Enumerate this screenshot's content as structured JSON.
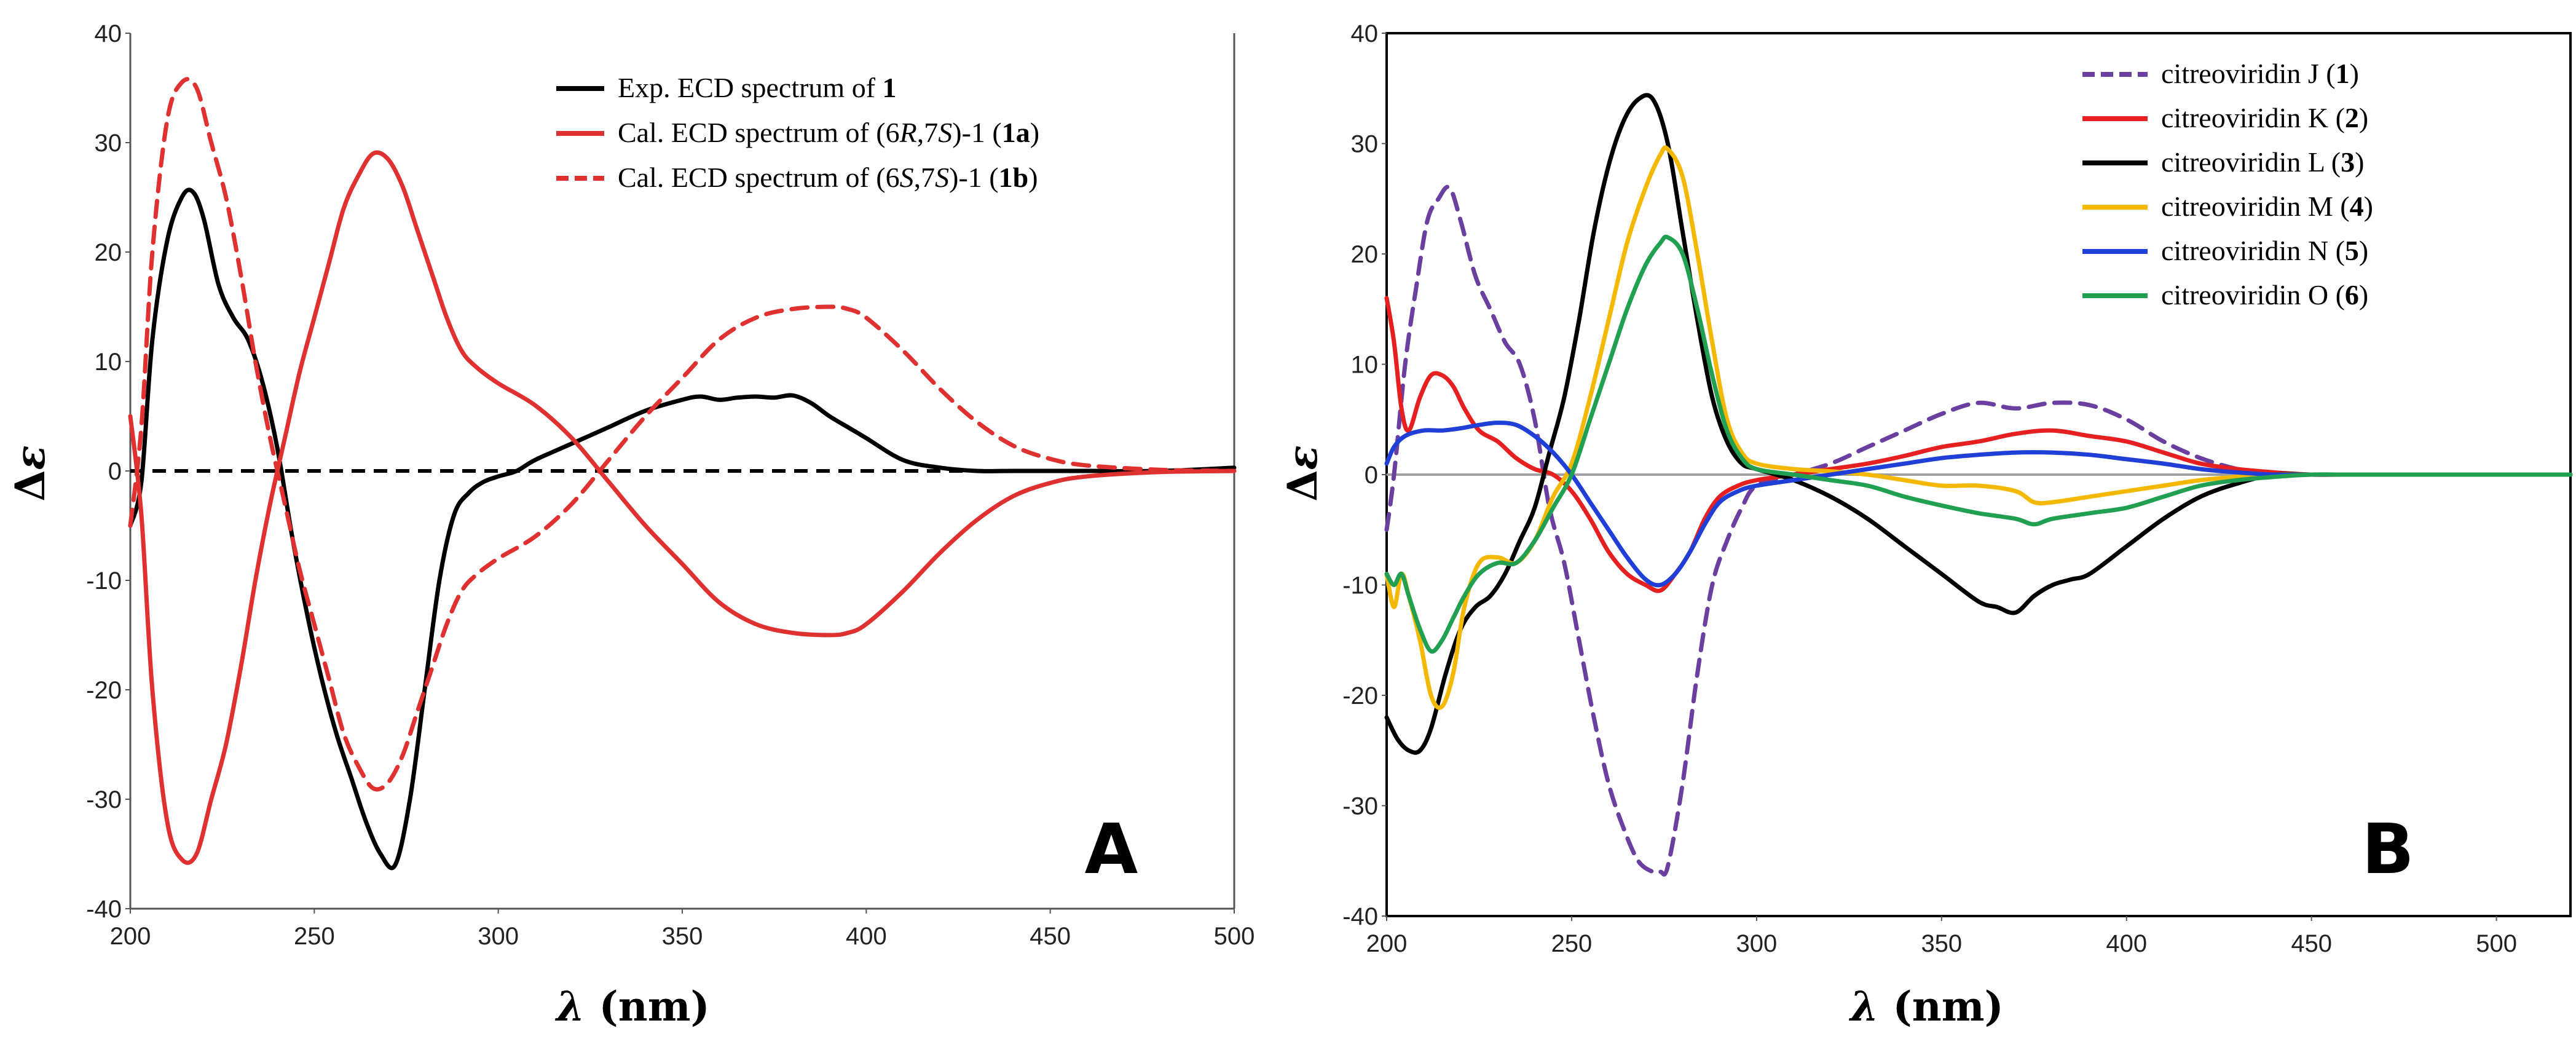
{
  "chart_data": [
    {
      "type": "line",
      "panel_label": "A",
      "xlabel_var": "λ",
      "xlabel_unit": " (nm)",
      "ylabel": "Δε",
      "xlim": [
        200,
        500
      ],
      "ylim": [
        -40,
        40
      ],
      "xticks": [
        200,
        250,
        300,
        350,
        400,
        450,
        500
      ],
      "yticks": [
        -40,
        -30,
        -20,
        -10,
        0,
        10,
        20,
        30,
        40
      ],
      "grid": false,
      "legend_position": "top-right",
      "colors": {
        "black": "#000000",
        "red": "#e03131"
      },
      "zero_line": {
        "value": 0,
        "style": "dashed",
        "color": "#000000"
      },
      "series": [
        {
          "name": "Exp. ECD spectrum of 1",
          "legend_parts": [
            [
              "Exp. ECD spectrum of ",
              ""
            ],
            [
              "1",
              "b"
            ]
          ],
          "color": "#000000",
          "dash": "solid",
          "x": [
            200,
            203,
            206,
            210,
            214,
            217,
            220,
            224,
            228,
            232,
            236,
            240,
            244,
            248,
            252,
            256,
            260,
            264,
            268,
            272,
            276,
            280,
            284,
            288,
            292,
            296,
            300,
            305,
            310,
            320,
            330,
            340,
            350,
            355,
            360,
            365,
            370,
            375,
            380,
            385,
            390,
            395,
            400,
            410,
            420,
            430,
            440,
            460,
            480,
            500
          ],
          "y": [
            -5,
            -1,
            12,
            21,
            25,
            25.5,
            23,
            17,
            14,
            12,
            8,
            2,
            -6,
            -13,
            -19,
            -24,
            -28,
            -32,
            -35,
            -36,
            -30,
            -20,
            -10,
            -4,
            -2,
            -1,
            -0.5,
            0,
            1,
            2.5,
            4,
            5.5,
            6.5,
            6.8,
            6.5,
            6.7,
            6.8,
            6.7,
            6.9,
            6.2,
            5,
            4,
            3,
            1,
            0.3,
            0,
            0,
            0,
            0,
            0.3
          ]
        },
        {
          "name": "Cal. ECD spectrum of (6R,7S)-1 (1a)",
          "legend_parts": [
            [
              "Cal. ECD spectrum of (6",
              ""
            ],
            [
              "R",
              "i"
            ],
            [
              ",7",
              ""
            ],
            [
              "S",
              "i"
            ],
            [
              ")-1 (",
              ""
            ],
            [
              "1a",
              "b"
            ],
            [
              ")",
              ""
            ]
          ],
          "color": "#e03131",
          "dash": "solid",
          "x": [
            200,
            203,
            206,
            210,
            214,
            218,
            222,
            226,
            230,
            234,
            238,
            242,
            246,
            250,
            254,
            258,
            262,
            266,
            270,
            274,
            278,
            282,
            286,
            290,
            294,
            300,
            310,
            320,
            330,
            340,
            350,
            360,
            370,
            380,
            390,
            395,
            400,
            410,
            420,
            430,
            440,
            450,
            460,
            480,
            500
          ],
          "y": [
            5,
            -4,
            -20,
            -32,
            -35.5,
            -35,
            -30,
            -25,
            -18,
            -10,
            -3,
            3,
            9,
            14,
            19,
            24,
            27,
            29,
            28.5,
            26,
            22,
            18,
            14,
            11,
            9.5,
            8,
            6,
            3,
            -1,
            -5,
            -8.5,
            -12,
            -14,
            -14.8,
            -15,
            -14.8,
            -14,
            -11,
            -7.5,
            -4.5,
            -2.3,
            -1.1,
            -0.5,
            -0.1,
            0
          ]
        },
        {
          "name": "Cal. ECD spectrum of (6S,7S)-1 (1b)",
          "legend_parts": [
            [
              "Cal. ECD spectrum of (6",
              ""
            ],
            [
              "S",
              "i"
            ],
            [
              ",7",
              ""
            ],
            [
              "S",
              "i"
            ],
            [
              ")-1 (",
              ""
            ],
            [
              "1b",
              "b"
            ],
            [
              ")",
              ""
            ]
          ],
          "color": "#e03131",
          "dash": "dashed",
          "x": [
            200,
            203,
            206,
            210,
            214,
            218,
            222,
            226,
            230,
            234,
            238,
            242,
            246,
            250,
            254,
            258,
            262,
            266,
            270,
            274,
            278,
            282,
            286,
            290,
            294,
            300,
            310,
            320,
            330,
            340,
            350,
            360,
            370,
            380,
            390,
            395,
            400,
            410,
            420,
            430,
            440,
            450,
            460,
            480,
            500
          ],
          "y": [
            -5,
            4,
            20,
            32,
            35.5,
            35,
            30,
            25,
            18,
            10,
            3,
            -3,
            -9,
            -14,
            -19,
            -24,
            -27,
            -29,
            -28.5,
            -26,
            -22,
            -18,
            -14,
            -11,
            -9.5,
            -8,
            -6,
            -3,
            1,
            5,
            8.5,
            12,
            14,
            14.8,
            15,
            14.8,
            14,
            11,
            7.5,
            4.5,
            2.3,
            1.1,
            0.5,
            0.1,
            0
          ]
        }
      ]
    },
    {
      "type": "line",
      "panel_label": "B",
      "xlabel_var": "λ",
      "xlabel_unit": " (nm)",
      "ylabel": "Δε",
      "xlim": [
        200,
        520
      ],
      "ylim": [
        -40,
        40
      ],
      "xticks": [
        200,
        250,
        300,
        350,
        400,
        450,
        500
      ],
      "yticks": [
        -40,
        -30,
        -20,
        -10,
        0,
        10,
        20,
        30,
        40
      ],
      "grid": false,
      "legend_position": "top-right",
      "colors": {
        "purple": "#6a3fa0",
        "red": "#e62020",
        "black": "#000000",
        "yellow": "#f5b800",
        "blue": "#1f3fd6",
        "green": "#20a050",
        "zero": "#a0a0a0"
      },
      "zero_line": {
        "value": 0,
        "style": "solid",
        "color": "#a0a0a0"
      },
      "series": [
        {
          "name": "citreoviridin J  (1)",
          "legend_parts": [
            [
              "citreoviridin J  (",
              ""
            ],
            [
              "1",
              "b"
            ],
            [
              ")",
              ""
            ]
          ],
          "color": "#6a3fa0",
          "dash": "dashed",
          "x": [
            200,
            202,
            205,
            208,
            211,
            214,
            217,
            220,
            224,
            228,
            232,
            236,
            240,
            244,
            248,
            252,
            256,
            260,
            264,
            268,
            272,
            274,
            276,
            280,
            284,
            288,
            292,
            296,
            300,
            310,
            320,
            330,
            340,
            350,
            360,
            370,
            380,
            390,
            400,
            410,
            420,
            430,
            440,
            450,
            460,
            480,
            500,
            520
          ],
          "y": [
            -5,
            0,
            10,
            17,
            23,
            25,
            26,
            23,
            18,
            15,
            12,
            10,
            5,
            -3,
            -8,
            -15,
            -22,
            -28,
            -32,
            -35,
            -36,
            -36,
            -35.5,
            -28,
            -18,
            -10,
            -6,
            -3,
            -1,
            0,
            1,
            2.5,
            4,
            5.5,
            6.5,
            6,
            6.5,
            6.3,
            5,
            3,
            1.5,
            0.5,
            0,
            0,
            0,
            0,
            0,
            0
          ]
        },
        {
          "name": "citreoviridin K (2)",
          "legend_parts": [
            [
              "citreoviridin K (",
              ""
            ],
            [
              "2",
              "b"
            ],
            [
              ")",
              ""
            ]
          ],
          "color": "#e62020",
          "dash": "solid",
          "x": [
            200,
            202,
            204,
            206,
            209,
            212,
            215,
            218,
            221,
            225,
            230,
            235,
            240,
            245,
            250,
            255,
            260,
            265,
            270,
            274,
            278,
            282,
            286,
            290,
            295,
            300,
            310,
            320,
            330,
            340,
            350,
            360,
            370,
            380,
            390,
            400,
            410,
            420,
            430,
            440,
            450,
            460,
            480,
            500,
            520
          ],
          "y": [
            16,
            12,
            6,
            4,
            7,
            9,
            9,
            8,
            6,
            4,
            3,
            1.5,
            0.5,
            0,
            -1.5,
            -4,
            -7,
            -9,
            -10,
            -10.5,
            -9,
            -7,
            -4,
            -2,
            -1,
            -0.5,
            0,
            0.5,
            1,
            1.7,
            2.5,
            3,
            3.7,
            4,
            3.5,
            3,
            2,
            1,
            0.5,
            0.2,
            0,
            0,
            0,
            0,
            0
          ]
        },
        {
          "name": "citreoviridin L (3)",
          "legend_parts": [
            [
              "citreoviridin L (",
              ""
            ],
            [
              "3",
              "b"
            ],
            [
              ")",
              ""
            ]
          ],
          "color": "#000000",
          "dash": "solid",
          "x": [
            200,
            203,
            206,
            209,
            212,
            216,
            220,
            224,
            228,
            232,
            236,
            240,
            244,
            248,
            252,
            256,
            260,
            264,
            268,
            272,
            276,
            280,
            284,
            288,
            292,
            296,
            300,
            310,
            320,
            330,
            340,
            350,
            360,
            365,
            370,
            375,
            380,
            385,
            390,
            400,
            410,
            420,
            430,
            440,
            450,
            460,
            480,
            500,
            520
          ],
          "y": [
            -22,
            -24,
            -25,
            -25,
            -23,
            -18,
            -14,
            -12,
            -11,
            -9,
            -6,
            -3,
            2,
            7,
            14,
            22,
            28,
            32,
            34,
            34,
            30,
            22,
            14,
            7,
            3,
            1,
            0.5,
            -0.5,
            -2,
            -4,
            -6.5,
            -9,
            -11.5,
            -12,
            -12.5,
            -11,
            -10,
            -9.5,
            -9,
            -6.5,
            -4,
            -2,
            -0.8,
            0,
            0,
            0,
            0,
            0,
            0
          ]
        },
        {
          "name": "citreoviridin M (4)",
          "legend_parts": [
            [
              "citreoviridin M (",
              ""
            ],
            [
              "4",
              "b"
            ],
            [
              ")",
              ""
            ]
          ],
          "color": "#f5b800",
          "dash": "solid",
          "x": [
            200,
            202,
            204,
            206,
            209,
            212,
            215,
            218,
            221,
            225,
            230,
            235,
            240,
            245,
            250,
            255,
            260,
            265,
            270,
            274,
            276,
            280,
            284,
            288,
            292,
            296,
            300,
            310,
            320,
            330,
            340,
            350,
            360,
            370,
            375,
            380,
            390,
            400,
            410,
            420,
            430,
            440,
            450,
            460,
            480,
            500,
            520
          ],
          "y": [
            -9,
            -12,
            -9,
            -11,
            -15,
            -20,
            -21,
            -18,
            -12,
            -8,
            -7.5,
            -8,
            -6,
            -2,
            1,
            7,
            14,
            21,
            26,
            29,
            29.5,
            27,
            20,
            12,
            5,
            2,
            1,
            0.5,
            0.3,
            0,
            -0.5,
            -1,
            -1,
            -1.5,
            -2.5,
            -2.5,
            -2,
            -1.5,
            -1,
            -0.5,
            -0.2,
            0,
            0,
            0,
            0,
            0,
            0
          ]
        },
        {
          "name": "citreoviridin N (5)",
          "legend_parts": [
            [
              "citreoviridin N (",
              ""
            ],
            [
              "5",
              "b"
            ],
            [
              ")",
              ""
            ]
          ],
          "color": "#1f3fd6",
          "dash": "solid",
          "x": [
            200,
            202,
            205,
            210,
            215,
            220,
            225,
            230,
            235,
            240,
            245,
            250,
            255,
            260,
            265,
            270,
            274,
            278,
            282,
            286,
            290,
            295,
            300,
            310,
            320,
            330,
            340,
            350,
            360,
            370,
            380,
            390,
            400,
            410,
            420,
            430,
            440,
            450,
            460,
            480,
            500,
            520
          ],
          "y": [
            1,
            2.5,
            3.5,
            4,
            4,
            4.2,
            4.5,
            4.7,
            4.5,
            3.5,
            2,
            0,
            -2.5,
            -5,
            -7.5,
            -9.5,
            -10,
            -9,
            -7,
            -4.5,
            -2.5,
            -1.5,
            -1,
            -0.5,
            0,
            0.5,
            1,
            1.5,
            1.8,
            2,
            2,
            1.8,
            1.4,
            1,
            0.5,
            0.2,
            0,
            0,
            0,
            0,
            0,
            0
          ]
        },
        {
          "name": "citreoviridin O (6)",
          "legend_parts": [
            [
              "citreoviridin O (",
              ""
            ],
            [
              "6",
              "b"
            ],
            [
              ")",
              ""
            ]
          ],
          "color": "#20a050",
          "dash": "solid",
          "x": [
            200,
            202,
            204,
            206,
            209,
            212,
            215,
            218,
            221,
            225,
            230,
            235,
            240,
            245,
            250,
            255,
            260,
            265,
            270,
            274,
            276,
            280,
            284,
            288,
            292,
            296,
            300,
            310,
            320,
            330,
            340,
            350,
            360,
            370,
            375,
            380,
            390,
            400,
            410,
            420,
            430,
            440,
            450,
            460,
            480,
            500,
            520
          ],
          "y": [
            -9,
            -10,
            -9,
            -11,
            -14,
            -16,
            -15,
            -13,
            -11,
            -9,
            -8,
            -8,
            -6,
            -3,
            0,
            5,
            10,
            15,
            19,
            21,
            21.5,
            20,
            15,
            9,
            4,
            1.5,
            0.5,
            0,
            -0.5,
            -1,
            -2,
            -2.8,
            -3.5,
            -4,
            -4.5,
            -4,
            -3.5,
            -3,
            -2,
            -1,
            -0.5,
            -0.2,
            0,
            0,
            0,
            0,
            0
          ]
        }
      ]
    }
  ]
}
